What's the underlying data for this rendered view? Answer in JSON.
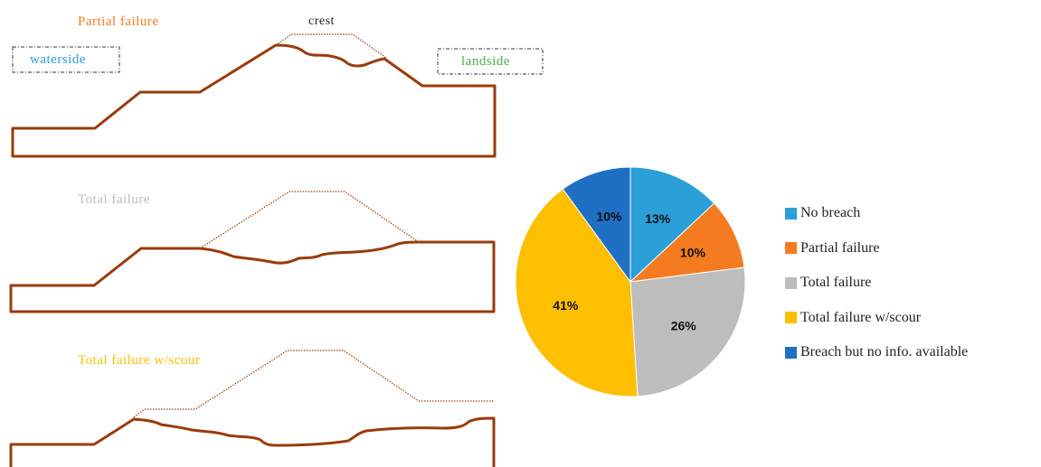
{
  "colors": {
    "levee": "#9A3B0A",
    "outline": "#9A3B0A",
    "no_breach": "#2A9FD8",
    "partial": "#F47B20",
    "total": "#BDBDBD",
    "total_scour": "#FDBF00",
    "breach_no_info": "#1F6FC5"
  },
  "diagrams": {
    "partial": {
      "title": "Partial failure",
      "crest_label": "crest",
      "waterside_label": "waterside",
      "landside_label": "landside"
    },
    "total": {
      "title": "Total failure"
    },
    "scour": {
      "title": "Total failure w/scour"
    }
  },
  "chart_data": {
    "type": "pie",
    "categories": [
      "No breach",
      "Partial failure",
      "Total failure",
      "Total failure w/scour",
      "Breach but no info. available"
    ],
    "values": [
      13,
      10,
      26,
      41,
      10
    ],
    "labels": [
      "13%",
      "10%",
      "26%",
      "41%",
      "10%"
    ],
    "colors": [
      "#2A9FD8",
      "#F47B20",
      "#BDBDBD",
      "#FDBF00",
      "#1F6FC5"
    ],
    "start_angle_deg": 0,
    "direction": "clockwise",
    "legend_position": "right"
  }
}
